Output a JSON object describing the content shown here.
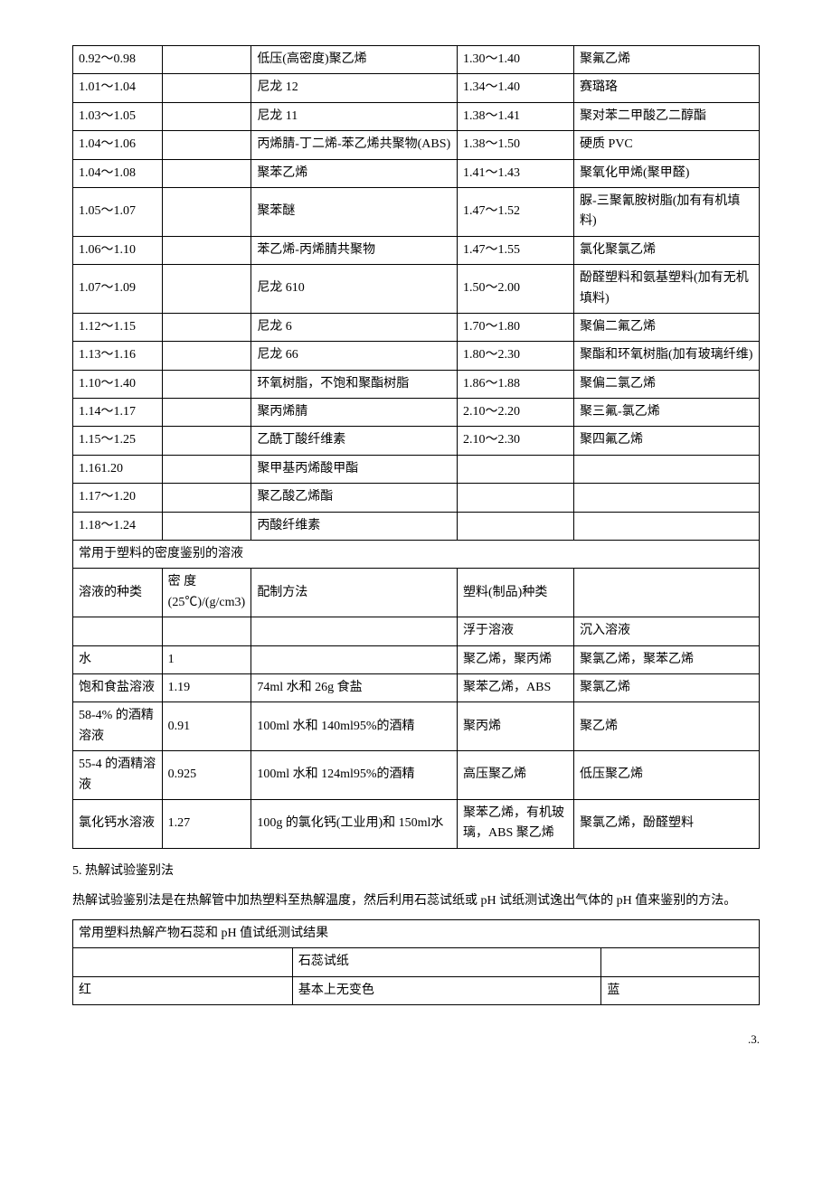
{
  "table1": {
    "rows": [
      [
        "0.92～0.98",
        "",
        "低压(高密度)聚乙烯",
        "1.30～1.40",
        "聚氟乙烯"
      ],
      [
        "1.01～1.04",
        "",
        "尼龙 12",
        "1.34～1.40",
        "赛璐珞"
      ],
      [
        "1.03～1.05",
        "",
        "尼龙 11",
        "1.38～1.41",
        "聚对苯二甲酸乙二醇酯"
      ],
      [
        "1.04～1.06",
        "",
        "丙烯腈-丁二烯-苯乙烯共聚物(ABS)",
        "1.38～1.50",
        "硬质 PVC"
      ],
      [
        "1.04～1.08",
        "",
        "聚苯乙烯",
        "1.41～1.43",
        "聚氧化甲烯(聚甲醛)"
      ],
      [
        "1.05～1.07",
        "",
        "聚苯醚",
        "1.47～1.52",
        "脲-三聚氰胺树脂(加有有机填料)"
      ],
      [
        "1.06～1.10",
        "",
        "苯乙烯-丙烯腈共聚物",
        "1.47～1.55",
        "氯化聚氯乙烯"
      ],
      [
        "1.07～1.09",
        "",
        "尼龙 610",
        "1.50～2.00",
        "酚醛塑料和氨基塑料(加有无机填料)"
      ],
      [
        "1.12～1.15",
        "",
        "尼龙 6",
        "1.70～1.80",
        "聚偏二氟乙烯"
      ],
      [
        "1.13～1.16",
        "",
        "尼龙 66",
        "1.80～2.30",
        "聚酯和环氧树脂(加有玻璃纤维)"
      ],
      [
        "1.10～1.40",
        "",
        "环氧树脂，不饱和聚酯树脂",
        "1.86～1.88",
        "聚偏二氯乙烯"
      ],
      [
        "1.14～1.17",
        "",
        "聚丙烯腈",
        "2.10～2.20",
        "聚三氟-氯乙烯"
      ],
      [
        "1.15～1.25",
        "",
        "乙酰丁酸纤维素",
        "2.10～2.30",
        "聚四氟乙烯"
      ],
      [
        "1.161.20",
        "",
        "聚甲基丙烯酸甲酯",
        "",
        ""
      ],
      [
        "1.17～1.20",
        "",
        "聚乙酸乙烯酯",
        "",
        ""
      ],
      [
        "1.18～1.24",
        "",
        "丙酸纤维素",
        "",
        ""
      ]
    ],
    "spanner": "常用于塑料的密度鉴别的溶液",
    "header2": [
      "溶液的种类",
      "密 度 (25℃)/(g/cm3)",
      "配制方法",
      "塑料(制品)种类",
      ""
    ],
    "subheader": [
      "",
      "",
      "",
      "浮于溶液",
      "沉入溶液"
    ],
    "rows2": [
      [
        "水",
        "1",
        "",
        "聚乙烯，聚丙烯",
        "聚氯乙烯，聚苯乙烯"
      ],
      [
        "饱和食盐溶液",
        "1.19",
        "74ml 水和 26g 食盐",
        "聚苯乙烯，ABS",
        "聚氯乙烯"
      ],
      [
        "58-4% 的酒精溶液",
        "0.91",
        "100ml 水和 140ml95%的酒精",
        "聚丙烯",
        "聚乙烯"
      ],
      [
        "55-4 的酒精溶液",
        "0.925",
        "100ml 水和 124ml95%的酒精",
        "高压聚乙烯",
        "低压聚乙烯"
      ],
      [
        "氯化钙水溶液",
        "1.27",
        "100g 的氯化钙(工业用)和 150ml水",
        "聚苯乙烯，有机玻璃，ABS 聚乙烯",
        "聚氯乙烯，酚醛塑料"
      ]
    ]
  },
  "section5": {
    "title": "5. 热解试验鉴别法",
    "desc": "热解试验鉴别法是在热解管中加热塑料至热解温度，然后利用石蕊试纸或 pH 试纸测试逸出气体的 pH 值来鉴别的方法。"
  },
  "table2": {
    "header": "常用塑料热解产物石蕊和 pH 值试纸测试结果",
    "row1": [
      "",
      "石蕊试纸",
      ""
    ],
    "row2": [
      "红",
      "基本上无变色",
      "蓝"
    ]
  },
  "pageNumber": ".3."
}
